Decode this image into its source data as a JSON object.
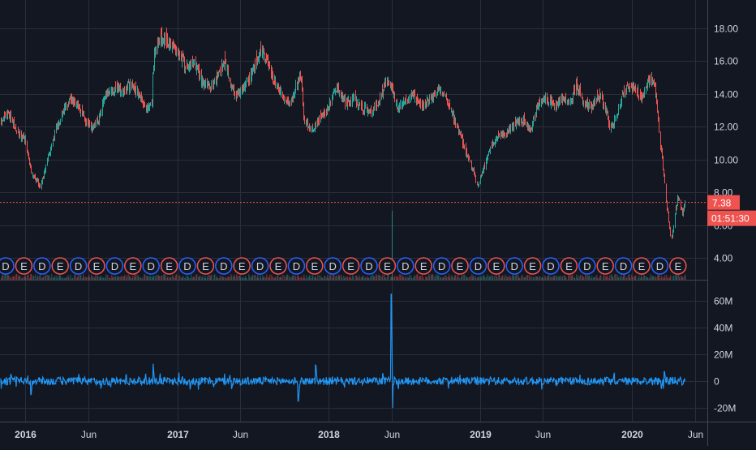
{
  "chart_data": [
    {
      "type": "candlestick",
      "title": "",
      "ylim": [
        3.2,
        19.0
      ],
      "y_ticks": [
        "4.00",
        "6.00",
        "8.00",
        "10.00",
        "12.00",
        "14.00",
        "16.00",
        "18.00"
      ],
      "x_ticks": [
        "2016",
        "Jun",
        "2017",
        "Jun",
        "2018",
        "Jun",
        "2019",
        "Jun",
        "2020",
        "Jun"
      ],
      "x_tick_dates": [
        "2016-01-01",
        "2016-06-01",
        "2017-01-01",
        "2017-06-01",
        "2018-01-01",
        "2018-06-01",
        "2019-01-01",
        "2019-06-01",
        "2020-01-01",
        "2020-06-01"
      ],
      "x_range": [
        "2015-11-01",
        "2020-07-01"
      ],
      "grid": true,
      "close_path": [
        [
          "2015-11-01",
          12.2
        ],
        [
          "2015-11-20",
          12.9
        ],
        [
          "2015-12-10",
          11.7
        ],
        [
          "2016-01-01",
          11.2
        ],
        [
          "2016-01-15",
          9.2
        ],
        [
          "2016-02-05",
          8.4
        ],
        [
          "2016-02-20",
          9.6
        ],
        [
          "2016-03-10",
          11.5
        ],
        [
          "2016-04-01",
          13.0
        ],
        [
          "2016-04-20",
          13.6
        ],
        [
          "2016-05-10",
          13.2
        ],
        [
          "2016-05-25",
          12.3
        ],
        [
          "2016-06-10",
          11.8
        ],
        [
          "2016-06-25",
          12.6
        ],
        [
          "2016-07-15",
          14.0
        ],
        [
          "2016-08-05",
          14.3
        ],
        [
          "2016-08-25",
          14.2
        ],
        [
          "2016-09-10",
          14.6
        ],
        [
          "2016-10-01",
          14.0
        ],
        [
          "2016-10-20",
          13.0
        ],
        [
          "2016-11-01",
          13.6
        ],
        [
          "2016-11-05",
          16.2
        ],
        [
          "2016-11-20",
          17.6
        ],
        [
          "2016-12-10",
          17.1
        ],
        [
          "2017-01-01",
          16.8
        ],
        [
          "2017-01-20",
          15.6
        ],
        [
          "2017-02-10",
          15.9
        ],
        [
          "2017-03-01",
          14.8
        ],
        [
          "2017-03-20",
          14.4
        ],
        [
          "2017-04-10",
          15.2
        ],
        [
          "2017-04-25",
          16.2
        ],
        [
          "2017-05-10",
          14.4
        ],
        [
          "2017-05-25",
          13.9
        ],
        [
          "2017-06-10",
          14.4
        ],
        [
          "2017-07-01",
          15.3
        ],
        [
          "2017-07-20",
          16.8
        ],
        [
          "2017-08-01",
          16.2
        ],
        [
          "2017-08-20",
          14.8
        ],
        [
          "2017-09-10",
          13.9
        ],
        [
          "2017-09-30",
          13.4
        ],
        [
          "2017-10-15",
          14.6
        ],
        [
          "2017-10-25",
          15.2
        ],
        [
          "2017-11-01",
          12.4
        ],
        [
          "2017-11-20",
          11.8
        ],
        [
          "2017-12-10",
          12.5
        ],
        [
          "2018-01-01",
          13.2
        ],
        [
          "2018-01-20",
          14.4
        ],
        [
          "2018-02-10",
          13.4
        ],
        [
          "2018-03-01",
          13.8
        ],
        [
          "2018-03-20",
          13.2
        ],
        [
          "2018-04-10",
          12.9
        ],
        [
          "2018-05-01",
          13.6
        ],
        [
          "2018-05-20",
          14.8
        ],
        [
          "2018-06-01",
          14.4
        ],
        [
          "2018-06-15",
          13.1
        ],
        [
          "2018-07-05",
          13.6
        ],
        [
          "2018-07-25",
          13.9
        ],
        [
          "2018-08-15",
          13.3
        ],
        [
          "2018-09-05",
          13.7
        ],
        [
          "2018-09-25",
          14.4
        ],
        [
          "2018-10-10",
          13.8
        ],
        [
          "2018-10-25",
          12.8
        ],
        [
          "2018-11-10",
          11.7
        ],
        [
          "2018-11-25",
          10.6
        ],
        [
          "2018-12-10",
          9.6
        ],
        [
          "2018-12-25",
          8.4
        ],
        [
          "2019-01-10",
          9.6
        ],
        [
          "2019-01-25",
          10.8
        ],
        [
          "2019-02-15",
          11.4
        ],
        [
          "2019-03-05",
          11.6
        ],
        [
          "2019-03-25",
          12.2
        ],
        [
          "2019-04-15",
          12.4
        ],
        [
          "2019-05-01",
          11.8
        ],
        [
          "2019-05-20",
          13.4
        ],
        [
          "2019-06-10",
          13.7
        ],
        [
          "2019-06-30",
          13.2
        ],
        [
          "2019-07-20",
          13.8
        ],
        [
          "2019-08-05",
          13.4
        ],
        [
          "2019-08-20",
          14.6
        ],
        [
          "2019-09-05",
          13.6
        ],
        [
          "2019-09-25",
          13.2
        ],
        [
          "2019-10-15",
          14.0
        ],
        [
          "2019-11-01",
          12.8
        ],
        [
          "2019-11-10",
          11.8
        ],
        [
          "2019-11-25",
          12.6
        ],
        [
          "2019-12-10",
          14.0
        ],
        [
          "2019-12-25",
          14.5
        ],
        [
          "2020-01-10",
          14.2
        ],
        [
          "2020-01-25",
          13.8
        ],
        [
          "2020-02-05",
          14.6
        ],
        [
          "2020-02-15",
          15.0
        ],
        [
          "2020-02-25",
          14.3
        ],
        [
          "2020-03-05",
          12.0
        ],
        [
          "2020-03-15",
          9.8
        ],
        [
          "2020-03-25",
          7.2
        ],
        [
          "2020-04-05",
          5.0
        ],
        [
          "2020-04-12",
          6.4
        ],
        [
          "2020-04-20",
          7.8
        ],
        [
          "2020-05-01",
          6.8
        ],
        [
          "2020-05-08",
          7.38
        ]
      ],
      "last_price": "7.38",
      "countdown": "01:51:30",
      "event_markers": [
        "D",
        "E",
        "D",
        "E",
        "D",
        "E",
        "D",
        "E",
        "D",
        "E",
        "D",
        "E",
        "D",
        "E",
        "D",
        "E",
        "D",
        "E",
        "D",
        "E",
        "D",
        "E",
        "D",
        "E",
        "D",
        "E",
        "D",
        "E",
        "D",
        "E",
        "D",
        "E",
        "D",
        "E",
        "D",
        "E",
        "D",
        "E"
      ],
      "colors": {
        "background": "#131722",
        "grid": "#2a2e39",
        "axis_text": "#d1d4dc",
        "up": "#26a69a",
        "down": "#ef5350",
        "last_price_bg": "#ef5350",
        "last_price_text": "#ffffff",
        "marker_d": "#2962ff",
        "marker_e": "#ef5350"
      }
    },
    {
      "type": "line",
      "title": "",
      "ylim": [
        -25000000,
        70000000
      ],
      "y_ticks": [
        "60M",
        "40M",
        "20M",
        "0",
        "-20M"
      ],
      "y_tick_values": [
        60000000,
        40000000,
        20000000,
        0,
        -20000000
      ],
      "typical_amplitude": 3000000,
      "spikes": [
        [
          "2016-01-15",
          -10000000
        ],
        [
          "2016-11-05",
          13000000
        ],
        [
          "2017-10-20",
          -15000000
        ],
        [
          "2017-12-01",
          12000000
        ],
        [
          "2018-06-01",
          65000000
        ],
        [
          "2018-06-03",
          -20000000
        ],
        [
          "2020-03-20",
          7000000
        ]
      ],
      "colors": {
        "line": "#2196f3"
      }
    }
  ]
}
